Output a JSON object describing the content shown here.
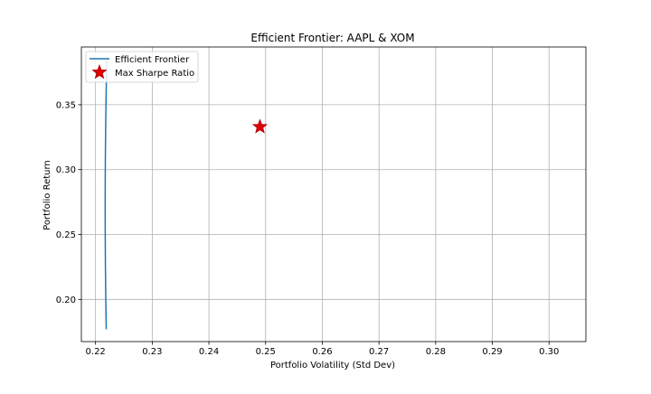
{
  "chart_data": {
    "type": "line",
    "title": "Efficient Frontier: AAPL & XOM",
    "xlabel": "Portfolio Volatility (Std Dev)",
    "ylabel": "Portfolio Return",
    "xlim": [
      0.2175,
      0.3065
    ],
    "ylim": [
      0.1675,
      0.3945
    ],
    "xticks": [
      0.22,
      0.23,
      0.24,
      0.25,
      0.26,
      0.27,
      0.28,
      0.29,
      0.3
    ],
    "xtick_labels": [
      "0.22",
      "0.23",
      "0.24",
      "0.25",
      "0.26",
      "0.27",
      "0.28",
      "0.29",
      "0.30"
    ],
    "yticks": [
      0.2,
      0.25,
      0.3,
      0.35
    ],
    "ytick_labels": [
      "0.20",
      "0.25",
      "0.30",
      "0.35"
    ],
    "grid": true,
    "legend_position": "top-left",
    "frontier_model": {
      "min_volatility": 0.2217,
      "return_at_min_volatility": 0.27,
      "curvature": 0.00963
    },
    "series": [
      {
        "name": "Efficient Frontier",
        "kind": "line",
        "color": "#1f77b4",
        "return_range": [
          0.177,
          0.384
        ]
      },
      {
        "name": "Max Sharpe Ratio",
        "kind": "marker",
        "marker": "star",
        "color": "#e00000",
        "x": 0.249,
        "y": 0.333
      }
    ]
  }
}
